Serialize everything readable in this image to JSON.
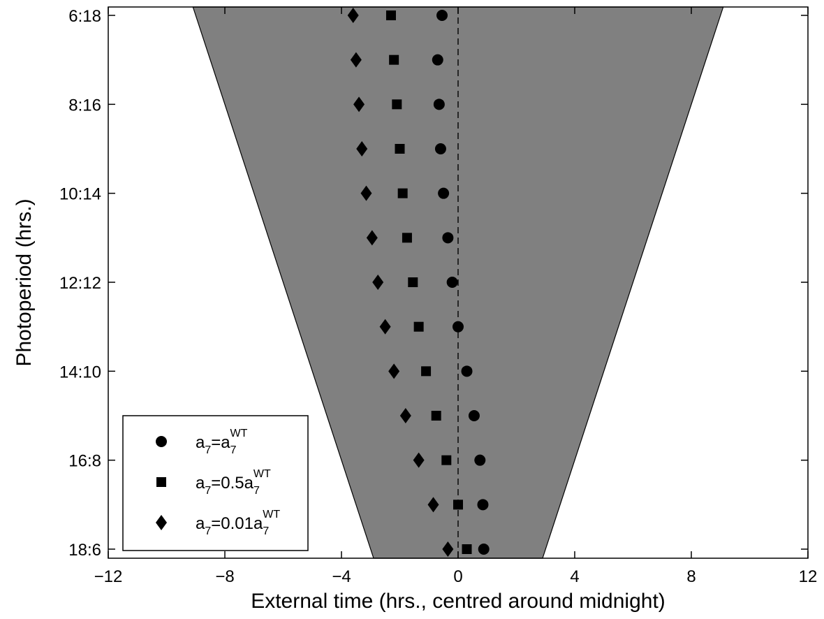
{
  "chart_data": {
    "type": "scatter",
    "title": "",
    "xlabel": "External time (hrs., centred around midnight)",
    "ylabel": "Photoperiod (hrs.)",
    "xlim": [
      -12,
      12
    ],
    "xticks": [
      -12,
      -8,
      -4,
      0,
      4,
      8,
      12
    ],
    "xtick_labels": [
      "−12",
      "−8",
      "−4",
      "0",
      "4",
      "8",
      "12"
    ],
    "photoperiods": [
      6,
      7,
      8,
      9,
      10,
      11,
      12,
      13,
      14,
      15,
      16,
      17,
      18
    ],
    "yticks": [
      6,
      8,
      10,
      12,
      14,
      16,
      18
    ],
    "ytick_labels": [
      "6:18",
      "8:16",
      "10:14",
      "12:12",
      "14:10",
      "16:8",
      "18:6"
    ],
    "y_direction": "top-to-bottom",
    "grid": false,
    "legend_position": "bottom-left",
    "dark_region": {
      "description": "night (dark period)",
      "color": "#808080",
      "top": {
        "photoperiod": 5.8,
        "x_start": -9.1,
        "x_end": 9.1
      },
      "bottom": {
        "photoperiod": 18.2,
        "x_start": -2.9,
        "x_end": 2.9
      }
    },
    "midnight_line": {
      "x": 0,
      "style": "dashed"
    },
    "series": [
      {
        "name": "a7=a7^WT",
        "marker": "circle",
        "x": [
          -0.55,
          -0.7,
          -0.65,
          -0.6,
          -0.5,
          -0.35,
          -0.2,
          0.0,
          0.3,
          0.55,
          0.75,
          0.85,
          0.88
        ]
      },
      {
        "name": "a7=0.5a7^WT",
        "marker": "square",
        "x": [
          -2.3,
          -2.2,
          -2.1,
          -2.0,
          -1.9,
          -1.75,
          -1.55,
          -1.35,
          -1.1,
          -0.75,
          -0.4,
          0.0,
          0.3
        ]
      },
      {
        "name": "a7=0.01a7^WT",
        "marker": "diamond",
        "x": [
          -3.6,
          -3.5,
          -3.4,
          -3.3,
          -3.15,
          -2.95,
          -2.75,
          -2.5,
          -2.2,
          -1.8,
          -1.35,
          -0.85,
          -0.35
        ]
      }
    ],
    "legend": [
      {
        "marker": "circle",
        "base": "a",
        "sub1": "7",
        "mid": "=a",
        "sub2": "7",
        "sup": "WT"
      },
      {
        "marker": "square",
        "base": "a",
        "sub1": "7",
        "mid": "=0.5a",
        "sub2": "7",
        "sup": "WT"
      },
      {
        "marker": "diamond",
        "base": "a",
        "sub1": "7",
        "mid": "=0.01a",
        "sub2": "7",
        "sup": "WT"
      }
    ],
    "colors": {
      "marker": "#000000",
      "dark_region": "#808080",
      "background": "#ffffff"
    }
  }
}
